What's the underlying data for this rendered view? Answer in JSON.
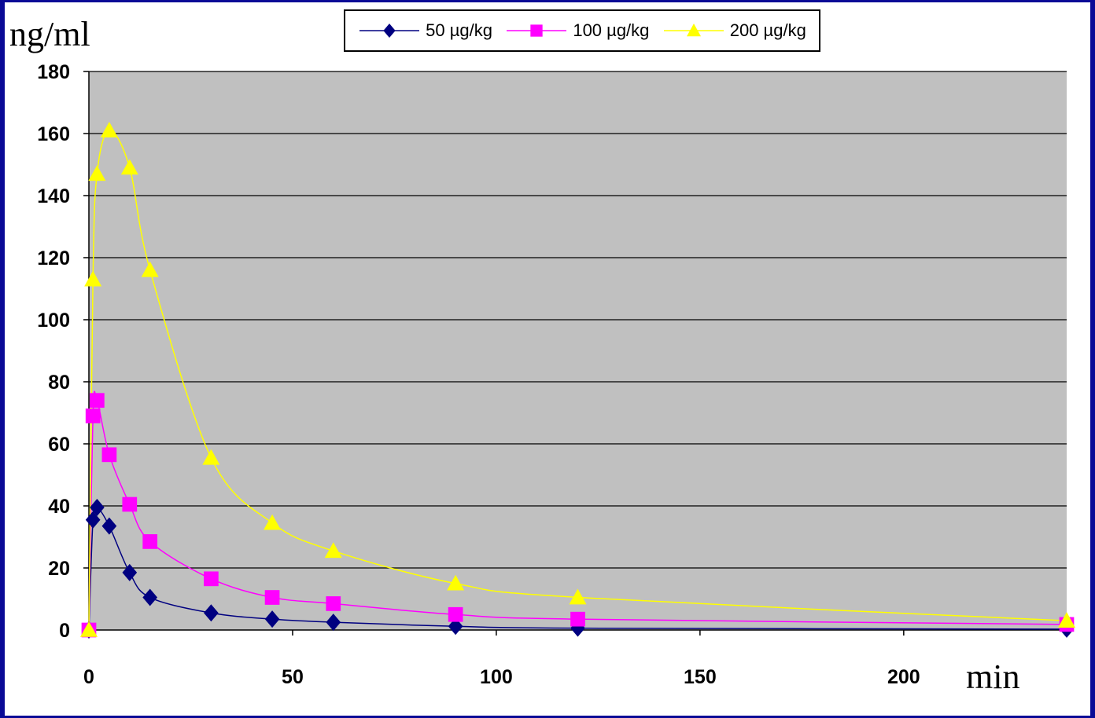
{
  "chart_data": {
    "type": "line",
    "ylabel": "ng/ml",
    "xlabel": "min",
    "xlim": [
      0,
      240
    ],
    "ylim": [
      0,
      180
    ],
    "x_ticks": [
      0,
      50,
      100,
      150,
      200
    ],
    "y_ticks": [
      0,
      20,
      40,
      60,
      80,
      100,
      120,
      140,
      160,
      180
    ],
    "grid": "horizontal",
    "plot_background": "#c0c0c0",
    "legend_position": "top-center",
    "series": [
      {
        "name": "50 µg/kg",
        "color": "#000080",
        "marker": "diamond",
        "points": [
          [
            0,
            0
          ],
          [
            1,
            35.5
          ],
          [
            2,
            39.5
          ],
          [
            5,
            33.5
          ],
          [
            10,
            18.5
          ],
          [
            15,
            10.5
          ],
          [
            30,
            5.5
          ],
          [
            45,
            3.5
          ],
          [
            60,
            2.5
          ],
          [
            90,
            1.2
          ],
          [
            120,
            0.6
          ],
          [
            240,
            0.3
          ]
        ]
      },
      {
        "name": "100 µg/kg",
        "color": "#ff00ff",
        "marker": "square",
        "points": [
          [
            0,
            0
          ],
          [
            1,
            69
          ],
          [
            2,
            74
          ],
          [
            5,
            56.5
          ],
          [
            10,
            40.5
          ],
          [
            15,
            28.5
          ],
          [
            30,
            16.5
          ],
          [
            45,
            10.5
          ],
          [
            60,
            8.5
          ],
          [
            90,
            5
          ],
          [
            120,
            3.5
          ],
          [
            240,
            1.8
          ]
        ]
      },
      {
        "name": "200 µg/kg",
        "color": "#ffff00",
        "marker": "triangle",
        "points": [
          [
            0,
            0
          ],
          [
            1,
            113
          ],
          [
            2,
            147
          ],
          [
            5,
            161
          ],
          [
            10,
            149
          ],
          [
            15,
            116
          ],
          [
            30,
            55.5
          ],
          [
            45,
            34.5
          ],
          [
            60,
            25.5
          ],
          [
            90,
            15
          ],
          [
            120,
            10.5
          ],
          [
            240,
            3
          ]
        ]
      }
    ]
  }
}
